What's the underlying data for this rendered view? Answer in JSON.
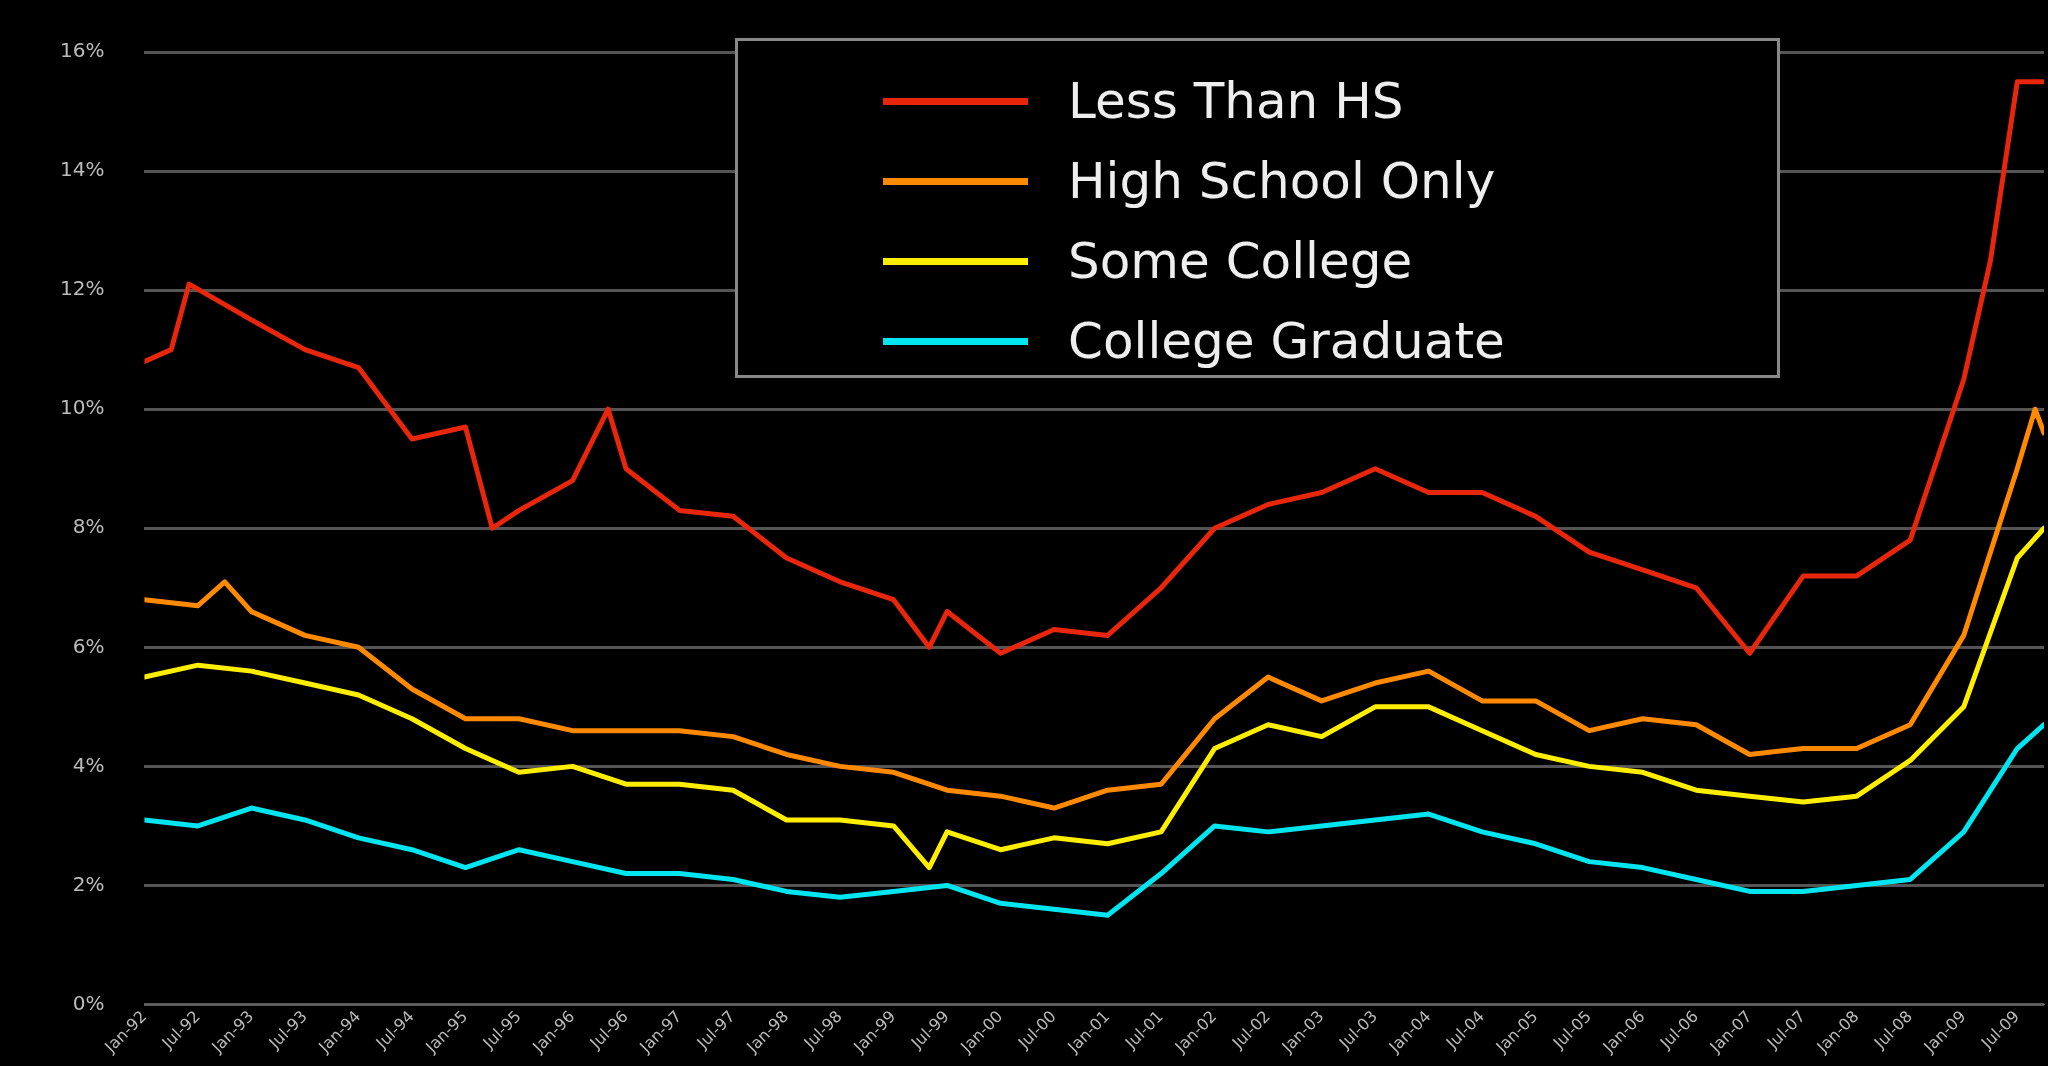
{
  "chart_data": {
    "type": "line",
    "xlim": [
      "1992-01",
      "2009-10"
    ],
    "xticks": [
      {
        "value": "1992-01",
        "label": "Jan-92"
      },
      {
        "value": "1992-07",
        "label": "Jul-92"
      },
      {
        "value": "1993-01",
        "label": "Jan-93"
      },
      {
        "value": "1993-07",
        "label": "Jul-93"
      },
      {
        "value": "1994-01",
        "label": "Jan-94"
      },
      {
        "value": "1994-07",
        "label": "Jul-94"
      },
      {
        "value": "1995-01",
        "label": "Jan-95"
      },
      {
        "value": "1995-07",
        "label": "Jul-95"
      },
      {
        "value": "1996-01",
        "label": "Jan-96"
      },
      {
        "value": "1996-07",
        "label": "Jul-96"
      },
      {
        "value": "1997-01",
        "label": "Jan-97"
      },
      {
        "value": "1997-07",
        "label": "Jul-97"
      },
      {
        "value": "1998-01",
        "label": "Jan-98"
      },
      {
        "value": "1998-07",
        "label": "Jul-98"
      },
      {
        "value": "1999-01",
        "label": "Jan-99"
      },
      {
        "value": "1999-07",
        "label": "Jul-99"
      },
      {
        "value": "2000-01",
        "label": "Jan-00"
      },
      {
        "value": "2000-07",
        "label": "Jul-00"
      },
      {
        "value": "2001-01",
        "label": "Jan-01"
      },
      {
        "value": "2001-07",
        "label": "Jul-01"
      },
      {
        "value": "2002-01",
        "label": "Jan-02"
      },
      {
        "value": "2002-07",
        "label": "Jul-02"
      },
      {
        "value": "2003-01",
        "label": "Jan-03"
      },
      {
        "value": "2003-07",
        "label": "Jul-03"
      },
      {
        "value": "2004-01",
        "label": "Jan-04"
      },
      {
        "value": "2004-07",
        "label": "Jul-04"
      },
      {
        "value": "2005-01",
        "label": "Jan-05"
      },
      {
        "value": "2005-07",
        "label": "Jul-05"
      },
      {
        "value": "2006-01",
        "label": "Jan-06"
      },
      {
        "value": "2006-07",
        "label": "Jul-06"
      },
      {
        "value": "2007-01",
        "label": "Jan-07"
      },
      {
        "value": "2007-07",
        "label": "Jul-07"
      },
      {
        "value": "2008-01",
        "label": "Jan-08"
      },
      {
        "value": "2008-07",
        "label": "Jul-08"
      },
      {
        "value": "2009-01",
        "label": "Jan-09"
      },
      {
        "value": "2009-07",
        "label": "Jul-09"
      }
    ],
    "ylim": [
      0,
      16
    ],
    "yticks": [
      {
        "value": 0,
        "label": "0%"
      },
      {
        "value": 2,
        "label": "2%"
      },
      {
        "value": 4,
        "label": "4%"
      },
      {
        "value": 6,
        "label": "6%"
      },
      {
        "value": 8,
        "label": "8%"
      },
      {
        "value": 10,
        "label": "10%"
      },
      {
        "value": 12,
        "label": "12%"
      },
      {
        "value": 14,
        "label": "14%"
      },
      {
        "value": 16,
        "label": "16%"
      }
    ],
    "grid": "y",
    "legend": "top",
    "marker": "none",
    "line_style": "solid",
    "series": [
      {
        "name": "Less Than HS",
        "color": "#e8260c",
        "x": [
          "1992-01",
          "1992-04",
          "1992-06",
          "1993-01",
          "1993-07",
          "1994-01",
          "1994-07",
          "1995-01",
          "1995-04",
          "1995-07",
          "1996-01",
          "1996-05",
          "1996-07",
          "1997-01",
          "1997-07",
          "1998-01",
          "1998-07",
          "1999-01",
          "1999-05",
          "1999-07",
          "2000-01",
          "2000-07",
          "2001-01",
          "2001-07",
          "2002-01",
          "2002-07",
          "2003-01",
          "2003-07",
          "2004-01",
          "2004-07",
          "2005-01",
          "2005-07",
          "2006-01",
          "2006-07",
          "2007-01",
          "2007-07",
          "2008-01",
          "2008-07",
          "2009-01",
          "2009-04",
          "2009-07",
          "2009-10"
        ],
        "values": [
          10.8,
          11.0,
          12.1,
          11.5,
          11.0,
          10.7,
          9.5,
          9.7,
          8.0,
          8.3,
          8.8,
          10.0,
          9.0,
          8.3,
          8.2,
          7.5,
          7.1,
          6.8,
          6.0,
          6.6,
          5.9,
          6.3,
          6.2,
          7.0,
          8.0,
          8.4,
          8.6,
          9.0,
          8.6,
          8.6,
          8.2,
          7.6,
          7.3,
          7.0,
          5.9,
          7.2,
          7.2,
          7.8,
          10.5,
          12.5,
          15.5,
          15.5
        ]
      },
      {
        "name": "High School Only",
        "color": "#ff8a00",
        "x": [
          "1992-01",
          "1992-07",
          "1992-10",
          "1993-01",
          "1993-07",
          "1994-01",
          "1994-07",
          "1995-01",
          "1995-07",
          "1996-01",
          "1996-07",
          "1997-01",
          "1997-07",
          "1998-01",
          "1998-07",
          "1999-01",
          "1999-07",
          "2000-01",
          "2000-07",
          "2001-01",
          "2001-07",
          "2002-01",
          "2002-07",
          "2003-01",
          "2003-07",
          "2004-01",
          "2004-07",
          "2005-01",
          "2005-07",
          "2006-01",
          "2006-07",
          "2007-01",
          "2007-07",
          "2008-01",
          "2008-07",
          "2009-01",
          "2009-07",
          "2009-09",
          "2009-10"
        ],
        "values": [
          6.8,
          6.7,
          7.1,
          6.6,
          6.2,
          6.0,
          5.3,
          4.8,
          4.8,
          4.6,
          4.6,
          4.6,
          4.5,
          4.2,
          4.0,
          3.9,
          3.6,
          3.5,
          3.3,
          3.6,
          3.7,
          4.8,
          5.5,
          5.1,
          5.4,
          5.6,
          5.1,
          5.1,
          4.6,
          4.8,
          4.7,
          4.2,
          4.3,
          4.3,
          4.7,
          6.2,
          9.0,
          10.0,
          9.6
        ]
      },
      {
        "name": "Some College",
        "color": "#ffee00",
        "x": [
          "1992-01",
          "1992-07",
          "1993-01",
          "1993-07",
          "1994-01",
          "1994-07",
          "1995-01",
          "1995-07",
          "1996-01",
          "1996-07",
          "1997-01",
          "1997-07",
          "1998-01",
          "1998-07",
          "1999-01",
          "1999-05",
          "1999-07",
          "2000-01",
          "2000-07",
          "2001-01",
          "2001-07",
          "2002-01",
          "2002-07",
          "2003-01",
          "2003-07",
          "2004-01",
          "2004-07",
          "2005-01",
          "2005-07",
          "2006-01",
          "2006-07",
          "2007-01",
          "2007-07",
          "2008-01",
          "2008-07",
          "2009-01",
          "2009-07",
          "2009-10"
        ],
        "values": [
          5.5,
          5.7,
          5.6,
          5.4,
          5.2,
          4.8,
          4.3,
          3.9,
          4.0,
          3.7,
          3.7,
          3.6,
          3.1,
          3.1,
          3.0,
          2.3,
          2.9,
          2.6,
          2.8,
          2.7,
          2.9,
          4.3,
          4.7,
          4.5,
          5.0,
          5.0,
          4.6,
          4.2,
          4.0,
          3.9,
          3.6,
          3.5,
          3.4,
          3.5,
          4.1,
          5.0,
          7.5,
          8.0
        ]
      },
      {
        "name": "College Graduate",
        "color": "#00e5f0",
        "x": [
          "1992-01",
          "1992-07",
          "1993-01",
          "1993-07",
          "1994-01",
          "1994-07",
          "1995-01",
          "1995-07",
          "1996-01",
          "1996-07",
          "1997-01",
          "1997-07",
          "1998-01",
          "1998-07",
          "1999-01",
          "1999-07",
          "2000-01",
          "2000-07",
          "2001-01",
          "2001-07",
          "2002-01",
          "2002-07",
          "2003-01",
          "2003-07",
          "2004-01",
          "2004-07",
          "2005-01",
          "2005-07",
          "2006-01",
          "2006-07",
          "2007-01",
          "2007-07",
          "2008-01",
          "2008-07",
          "2009-01",
          "2009-07",
          "2009-10"
        ],
        "values": [
          3.1,
          3.0,
          3.3,
          3.1,
          2.8,
          2.6,
          2.3,
          2.6,
          2.4,
          2.2,
          2.2,
          2.1,
          1.9,
          1.8,
          1.9,
          2.0,
          1.7,
          1.6,
          1.5,
          2.2,
          3.0,
          2.9,
          3.0,
          3.1,
          3.2,
          2.9,
          2.7,
          2.4,
          2.3,
          2.1,
          1.9,
          1.9,
          2.0,
          2.1,
          2.9,
          4.3,
          4.7
        ]
      }
    ]
  }
}
